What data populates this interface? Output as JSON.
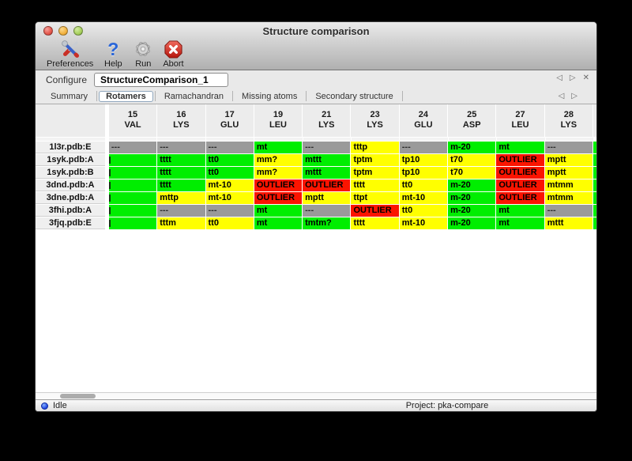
{
  "window": {
    "title": "Structure comparison"
  },
  "toolbar": {
    "items": [
      {
        "label": "Preferences",
        "icon": "tools-icon"
      },
      {
        "label": "Help",
        "icon": "help-icon"
      },
      {
        "label": "Run",
        "icon": "gear-icon"
      },
      {
        "label": "Abort",
        "icon": "abort-icon"
      }
    ]
  },
  "configure": {
    "label": "Configure",
    "value": "StructureComparison_1",
    "prev_icon": "◁",
    "next_icon": "▷",
    "close_icon": "✕"
  },
  "tabs": {
    "items": [
      {
        "label": "Summary"
      },
      {
        "label": "Rotamers"
      },
      {
        "label": "Ramachandran"
      },
      {
        "label": "Missing atoms"
      },
      {
        "label": "Secondary structure"
      }
    ],
    "selected": "Rotamers",
    "prev_icon": "◁",
    "next_icon": "▷"
  },
  "table": {
    "columns": [
      {
        "num": "15",
        "res": "VAL"
      },
      {
        "num": "16",
        "res": "LYS"
      },
      {
        "num": "17",
        "res": "GLU"
      },
      {
        "num": "19",
        "res": "LEU"
      },
      {
        "num": "21",
        "res": "LYS"
      },
      {
        "num": "23",
        "res": "LYS"
      },
      {
        "num": "24",
        "res": "GLU"
      },
      {
        "num": "25",
        "res": "ASP"
      },
      {
        "num": "27",
        "res": "LEU"
      },
      {
        "num": "28",
        "res": "LYS"
      }
    ],
    "rows": [
      {
        "label": "1l3r.pdb:E",
        "overflow": "green",
        "cells": [
          {
            "v": "---",
            "c": "gray"
          },
          {
            "v": "---",
            "c": "gray"
          },
          {
            "v": "---",
            "c": "gray"
          },
          {
            "v": "mt",
            "c": "green"
          },
          {
            "v": "---",
            "c": "gray"
          },
          {
            "v": "tttp",
            "c": "yellow"
          },
          {
            "v": "---",
            "c": "gray"
          },
          {
            "v": "m-20",
            "c": "green"
          },
          {
            "v": "mt",
            "c": "green"
          },
          {
            "v": "---",
            "c": "gray"
          }
        ]
      },
      {
        "label": "1syk.pdb:A",
        "overflow": "green",
        "cells": [
          {
            "v": "",
            "c": "green",
            "clip": true
          },
          {
            "v": "tttt",
            "c": "green"
          },
          {
            "v": "tt0",
            "c": "green"
          },
          {
            "v": "mm?",
            "c": "yellow"
          },
          {
            "v": "mttt",
            "c": "green"
          },
          {
            "v": "tptm",
            "c": "yellow"
          },
          {
            "v": "tp10",
            "c": "yellow"
          },
          {
            "v": "t70",
            "c": "yellow"
          },
          {
            "v": "OUTLIER",
            "c": "red"
          },
          {
            "v": "mptt",
            "c": "yellow"
          }
        ]
      },
      {
        "label": "1syk.pdb:B",
        "overflow": "green",
        "cells": [
          {
            "v": "",
            "c": "green",
            "clip": true
          },
          {
            "v": "tttt",
            "c": "green"
          },
          {
            "v": "tt0",
            "c": "green"
          },
          {
            "v": "mm?",
            "c": "yellow"
          },
          {
            "v": "mttt",
            "c": "green"
          },
          {
            "v": "tptm",
            "c": "yellow"
          },
          {
            "v": "tp10",
            "c": "yellow"
          },
          {
            "v": "t70",
            "c": "yellow"
          },
          {
            "v": "OUTLIER",
            "c": "red"
          },
          {
            "v": "mptt",
            "c": "yellow"
          }
        ]
      },
      {
        "label": "3dnd.pdb:A",
        "overflow": "green",
        "cells": [
          {
            "v": "",
            "c": "green",
            "clip": true
          },
          {
            "v": "tttt",
            "c": "green"
          },
          {
            "v": "mt-10",
            "c": "yellow"
          },
          {
            "v": "OUTLIER",
            "c": "red"
          },
          {
            "v": "OUTLIER",
            "c": "red"
          },
          {
            "v": "tttt",
            "c": "yellow"
          },
          {
            "v": "tt0",
            "c": "yellow"
          },
          {
            "v": "m-20",
            "c": "green"
          },
          {
            "v": "OUTLIER",
            "c": "red"
          },
          {
            "v": "mtmm",
            "c": "yellow"
          }
        ]
      },
      {
        "label": "3dne.pdb:A",
        "overflow": "green",
        "cells": [
          {
            "v": "",
            "c": "green",
            "clip": true
          },
          {
            "v": "mttp",
            "c": "yellow"
          },
          {
            "v": "mt-10",
            "c": "yellow"
          },
          {
            "v": "OUTLIER",
            "c": "red"
          },
          {
            "v": "mptt",
            "c": "yellow"
          },
          {
            "v": "ttpt",
            "c": "yellow"
          },
          {
            "v": "mt-10",
            "c": "yellow"
          },
          {
            "v": "m-20",
            "c": "green"
          },
          {
            "v": "OUTLIER",
            "c": "red"
          },
          {
            "v": "mtmm",
            "c": "yellow"
          }
        ]
      },
      {
        "label": "3fhi.pdb:A",
        "overflow": "green",
        "cells": [
          {
            "v": "",
            "c": "green",
            "clip": true
          },
          {
            "v": "---",
            "c": "gray"
          },
          {
            "v": "---",
            "c": "gray"
          },
          {
            "v": "mt",
            "c": "green"
          },
          {
            "v": "---",
            "c": "gray"
          },
          {
            "v": "OUTLIER",
            "c": "red"
          },
          {
            "v": "tt0",
            "c": "yellow"
          },
          {
            "v": "m-20",
            "c": "green"
          },
          {
            "v": "mt",
            "c": "green"
          },
          {
            "v": "---",
            "c": "gray"
          }
        ]
      },
      {
        "label": "3fjq.pdb:E",
        "overflow": "green",
        "cells": [
          {
            "v": "",
            "c": "green",
            "clip": true
          },
          {
            "v": "tttm",
            "c": "yellow"
          },
          {
            "v": "tt0",
            "c": "yellow"
          },
          {
            "v": "mt",
            "c": "green"
          },
          {
            "v": "tmtm?",
            "c": "green"
          },
          {
            "v": "tttt",
            "c": "yellow"
          },
          {
            "v": "mt-10",
            "c": "yellow"
          },
          {
            "v": "m-20",
            "c": "green"
          },
          {
            "v": "mt",
            "c": "green"
          },
          {
            "v": "mttt",
            "c": "yellow"
          }
        ]
      }
    ]
  },
  "status": {
    "state": "Idle",
    "project": "Project: pka-compare"
  },
  "colors": {
    "green": "#00ee00",
    "yellow": "#ffff00",
    "red": "#fb1400",
    "gray": "#9a9a9a"
  }
}
